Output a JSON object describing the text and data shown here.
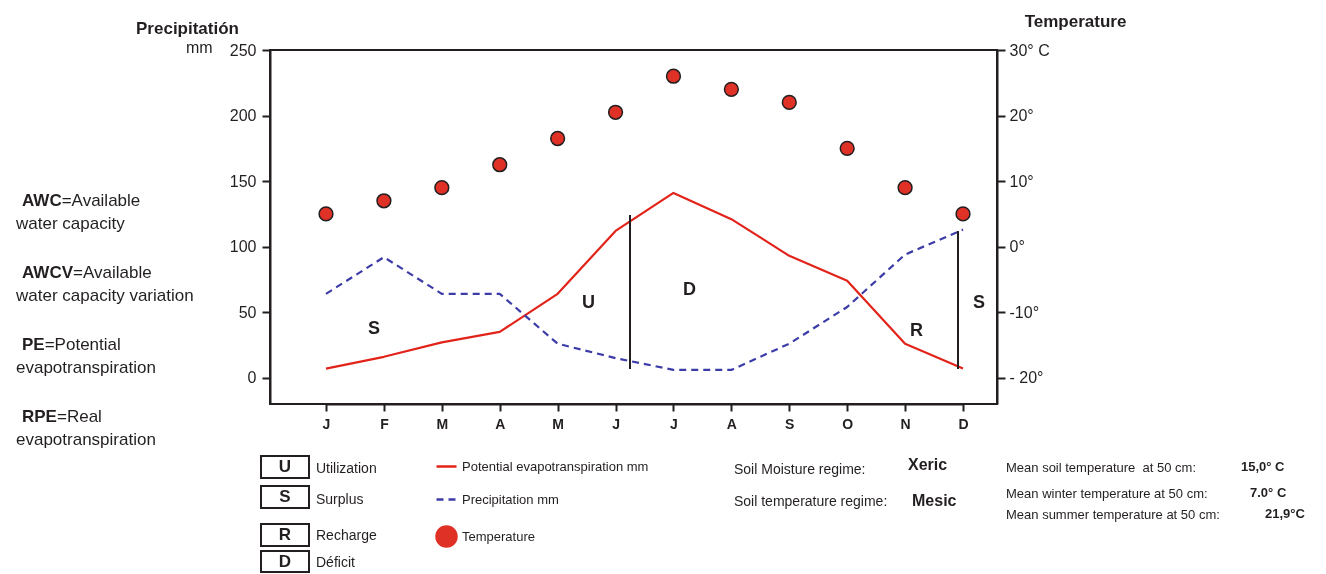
{
  "chart_data": {
    "type": "line",
    "ylabel": "Precipitatión",
    "y2label": "Temperature",
    "categories": [
      "J",
      "F",
      "M",
      "A",
      "M",
      "J",
      "J",
      "A",
      "S",
      "O",
      "N",
      "D"
    ],
    "ylim": [
      -20,
      250
    ],
    "yticks": [
      0,
      50,
      100,
      150,
      200,
      250
    ],
    "y2lim": [
      -24,
      30
    ],
    "y2ticks": [
      {
        "value": -20,
        "label": "- 20°"
      },
      {
        "value": -10,
        "label": "-10°"
      },
      {
        "value": 0,
        "label": "0°"
      },
      {
        "value": 10,
        "label": "10°"
      },
      {
        "value": 20,
        "label": "20°"
      },
      {
        "value": 30,
        "label": "30° C"
      }
    ],
    "legend": "bottom",
    "series": [
      {
        "name": "Potential evapotranspiration mm",
        "color": "#e2231a",
        "values": [
          7,
          16,
          27,
          35,
          64,
          112,
          141,
          121,
          93,
          74,
          26,
          7
        ]
      },
      {
        "name": "Precipitation mm",
        "line_style": "dashed",
        "color": "#3c3ca8",
        "values": [
          64,
          92,
          64,
          64,
          26,
          15,
          6,
          6,
          26,
          54,
          94,
          113
        ]
      },
      {
        "name": "Temperature",
        "type": "scatter",
        "marker": "circle",
        "axis": "y2",
        "color": "#e03127",
        "values": [
          5,
          7,
          9,
          12.5,
          16.5,
          20.5,
          26,
          24,
          22,
          15,
          9,
          5
        ]
      }
    ],
    "annotations": [
      "S",
      "U",
      "D",
      "R",
      "S",
      "mm",
      "AWC=Available",
      "water capacity",
      "AWCV=Available",
      "water capacity variation",
      "PE=Potential",
      "evapotranspiration",
      "RPE=Real",
      "evapotranspiration",
      "U",
      "Utilization",
      "S",
      "Surplus",
      "R",
      "Recharge",
      "D",
      "Déficit",
      "Soil Moisture regime:",
      "Xeric",
      "Soil temperature regime:",
      "Mesic",
      "Mean soil temperature  at 50 cm:",
      "15,0° C",
      "Mean winter temperature at 50 cm:",
      "7.0° C",
      "Mean summer temperature at 50 cm:",
      "21,9°C"
    ]
  }
}
